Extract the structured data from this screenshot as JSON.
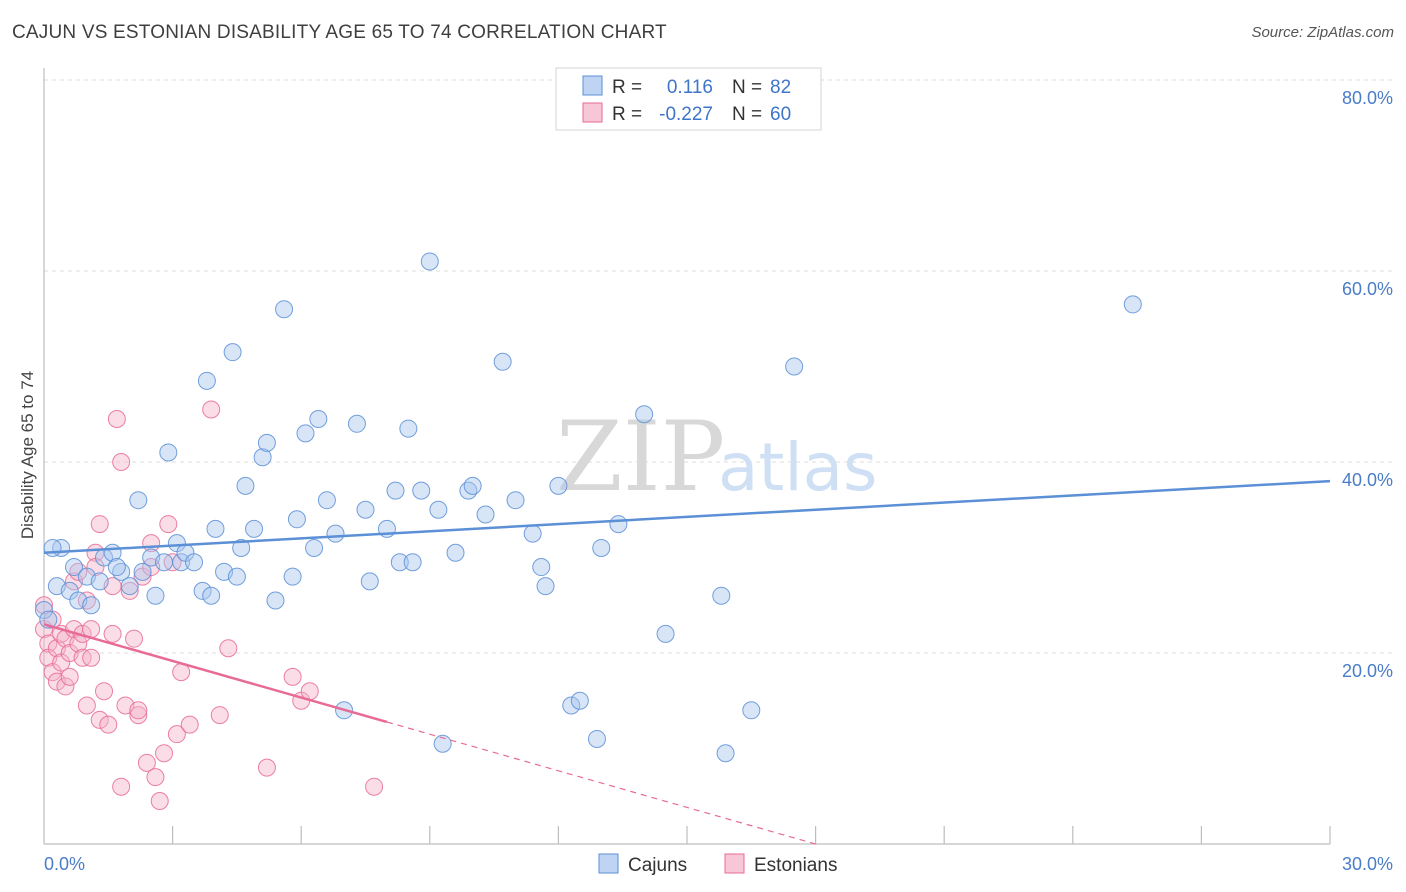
{
  "header": {
    "title": "CAJUN VS ESTONIAN DISABILITY AGE 65 TO 74 CORRELATION CHART",
    "source": "Source: ZipAtlas.com"
  },
  "watermark": {
    "zip": "ZIP",
    "atlas": "atlas"
  },
  "colors": {
    "cajun": "#5b8fd6",
    "cajun_fill": "#a9c6ee",
    "estonian": "#e86b97",
    "estonian_fill": "#f4b3c9",
    "axis_text": "#4a7cc7",
    "grid": "#dcdcdc"
  },
  "legend": {
    "r_label": "R =",
    "n_label": "N =",
    "cajun_r": "0.116",
    "cajun_n": "82",
    "estonian_r": "-0.227",
    "estonian_n": "60"
  },
  "chart_data": {
    "type": "scatter",
    "ylabel": "Disability Age 65 to 74",
    "xlim": [
      0,
      30
    ],
    "ylim": [
      0,
      80
    ],
    "x_tick_labels": [
      "0.0%",
      "30.0%"
    ],
    "y_ticks": [
      20,
      40,
      60,
      80
    ],
    "y_tick_labels": [
      "20.0%",
      "40.0%",
      "60.0%",
      "80.0%"
    ],
    "grid": true,
    "legend_position": "top-center",
    "series": [
      {
        "name": "Cajuns",
        "trend": {
          "x": [
            0,
            30
          ],
          "y": [
            30.5,
            38.0
          ],
          "solid_to": 30
        },
        "points": [
          [
            0.0,
            24.5
          ],
          [
            0.1,
            23.5
          ],
          [
            0.3,
            27.0
          ],
          [
            0.4,
            31.0
          ],
          [
            0.6,
            26.5
          ],
          [
            0.7,
            29.0
          ],
          [
            0.8,
            25.5
          ],
          [
            1.0,
            28.0
          ],
          [
            1.1,
            25.0
          ],
          [
            1.3,
            27.5
          ],
          [
            1.4,
            30.0
          ],
          [
            1.6,
            30.5
          ],
          [
            1.8,
            28.5
          ],
          [
            2.0,
            27.0
          ],
          [
            2.2,
            36.0
          ],
          [
            2.3,
            28.5
          ],
          [
            2.5,
            30.0
          ],
          [
            2.6,
            26.0
          ],
          [
            2.8,
            29.5
          ],
          [
            2.9,
            41.0
          ],
          [
            3.1,
            31.5
          ],
          [
            3.2,
            29.5
          ],
          [
            3.3,
            30.5
          ],
          [
            3.5,
            29.5
          ],
          [
            3.7,
            26.5
          ],
          [
            3.8,
            48.5
          ],
          [
            3.9,
            26.0
          ],
          [
            4.0,
            33.0
          ],
          [
            4.2,
            28.5
          ],
          [
            4.4,
            51.5
          ],
          [
            4.5,
            28.0
          ],
          [
            4.6,
            31.0
          ],
          [
            4.7,
            37.5
          ],
          [
            4.9,
            33.0
          ],
          [
            5.1,
            40.5
          ],
          [
            5.2,
            42.0
          ],
          [
            5.4,
            25.5
          ],
          [
            5.6,
            56.0
          ],
          [
            5.8,
            28.0
          ],
          [
            5.9,
            34.0
          ],
          [
            6.1,
            43.0
          ],
          [
            6.3,
            31.0
          ],
          [
            6.4,
            44.5
          ],
          [
            6.6,
            36.0
          ],
          [
            6.8,
            32.5
          ],
          [
            7.0,
            14.0
          ],
          [
            7.3,
            44.0
          ],
          [
            7.5,
            35.0
          ],
          [
            7.6,
            27.5
          ],
          [
            8.0,
            33.0
          ],
          [
            8.2,
            37.0
          ],
          [
            8.3,
            29.5
          ],
          [
            8.5,
            43.5
          ],
          [
            8.6,
            29.5
          ],
          [
            8.8,
            37.0
          ],
          [
            9.0,
            61.0
          ],
          [
            9.2,
            35.0
          ],
          [
            9.3,
            10.5
          ],
          [
            9.6,
            30.5
          ],
          [
            9.9,
            37.0
          ],
          [
            10.0,
            37.5
          ],
          [
            10.3,
            34.5
          ],
          [
            10.7,
            50.5
          ],
          [
            11.0,
            36.0
          ],
          [
            11.4,
            32.5
          ],
          [
            11.6,
            29.0
          ],
          [
            11.7,
            27.0
          ],
          [
            12.0,
            37.5
          ],
          [
            12.3,
            14.5
          ],
          [
            12.5,
            15.0
          ],
          [
            12.9,
            11.0
          ],
          [
            13.0,
            31.0
          ],
          [
            13.4,
            33.5
          ],
          [
            14.0,
            45.0
          ],
          [
            14.5,
            22.0
          ],
          [
            15.8,
            26.0
          ],
          [
            15.9,
            9.5
          ],
          [
            16.5,
            14.0
          ],
          [
            17.5,
            50.0
          ],
          [
            25.4,
            56.5
          ],
          [
            0.2,
            31.0
          ],
          [
            1.7,
            29.0
          ]
        ]
      },
      {
        "name": "Estonians",
        "trend": {
          "x": [
            0,
            18
          ],
          "y": [
            23.0,
            0.0
          ],
          "solid_to": 8.0
        },
        "points": [
          [
            0.0,
            22.5
          ],
          [
            0.1,
            21.0
          ],
          [
            0.1,
            19.5
          ],
          [
            0.2,
            23.5
          ],
          [
            0.2,
            18.0
          ],
          [
            0.3,
            20.5
          ],
          [
            0.3,
            17.0
          ],
          [
            0.4,
            22.0
          ],
          [
            0.4,
            19.0
          ],
          [
            0.5,
            16.5
          ],
          [
            0.5,
            21.5
          ],
          [
            0.6,
            20.0
          ],
          [
            0.6,
            17.5
          ],
          [
            0.7,
            27.5
          ],
          [
            0.7,
            22.5
          ],
          [
            0.8,
            28.5
          ],
          [
            0.8,
            21.0
          ],
          [
            0.9,
            22.0
          ],
          [
            0.9,
            19.5
          ],
          [
            1.0,
            25.5
          ],
          [
            1.0,
            14.5
          ],
          [
            1.1,
            22.5
          ],
          [
            1.1,
            19.5
          ],
          [
            1.2,
            30.5
          ],
          [
            1.2,
            29.0
          ],
          [
            1.3,
            33.5
          ],
          [
            1.3,
            13.0
          ],
          [
            1.4,
            16.0
          ],
          [
            1.5,
            12.5
          ],
          [
            1.6,
            27.0
          ],
          [
            1.6,
            22.0
          ],
          [
            1.7,
            44.5
          ],
          [
            1.8,
            40.0
          ],
          [
            1.8,
            6.0
          ],
          [
            1.9,
            14.5
          ],
          [
            2.0,
            26.5
          ],
          [
            2.1,
            21.5
          ],
          [
            2.2,
            13.5
          ],
          [
            2.2,
            14.0
          ],
          [
            2.3,
            28.0
          ],
          [
            2.4,
            8.5
          ],
          [
            2.5,
            31.5
          ],
          [
            2.6,
            7.0
          ],
          [
            2.7,
            4.5
          ],
          [
            2.8,
            9.5
          ],
          [
            2.9,
            33.5
          ],
          [
            3.0,
            29.5
          ],
          [
            3.1,
            11.5
          ],
          [
            3.2,
            18.0
          ],
          [
            3.4,
            12.5
          ],
          [
            3.9,
            45.5
          ],
          [
            4.1,
            13.5
          ],
          [
            4.3,
            20.5
          ],
          [
            5.2,
            8.0
          ],
          [
            5.8,
            17.5
          ],
          [
            6.0,
            15.0
          ],
          [
            6.2,
            16.0
          ],
          [
            7.7,
            6.0
          ],
          [
            0.0,
            25.0
          ],
          [
            2.5,
            29.0
          ]
        ]
      }
    ]
  }
}
